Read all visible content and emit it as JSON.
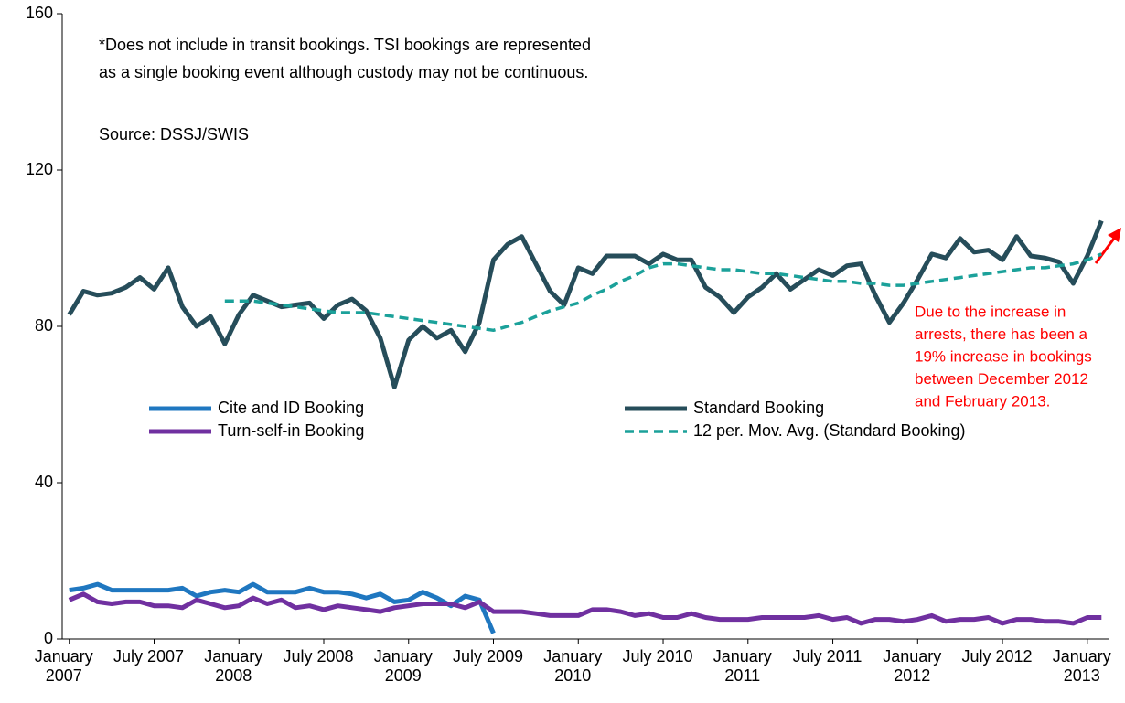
{
  "chart_data": {
    "type": "line",
    "notes": [
      "*Does not include in transit bookings. TSI bookings are represented",
      "as a single booking event although custody may not be continuous.",
      "Source: DSSJ/SWIS"
    ],
    "annotation": [
      "Due to the increase in",
      "arrests, there has been a",
      "19% increase in bookings",
      "between December 2012",
      "and February 2013."
    ],
    "annotation_color": "#FF0000",
    "categories": [
      "January 2007",
      null,
      null,
      null,
      null,
      null,
      "July 2007",
      null,
      null,
      null,
      null,
      null,
      "January 2008",
      null,
      null,
      null,
      null,
      null,
      "July 2008",
      null,
      null,
      null,
      null,
      null,
      "January 2009",
      null,
      null,
      null,
      null,
      null,
      "July 2009",
      null,
      null,
      null,
      null,
      null,
      "January 2010",
      null,
      null,
      null,
      null,
      null,
      "July 2010",
      null,
      null,
      null,
      null,
      null,
      "January 2011",
      null,
      null,
      null,
      null,
      null,
      "July 2011",
      null,
      null,
      null,
      null,
      null,
      "January 2012",
      null,
      null,
      null,
      null,
      null,
      "July 2012",
      null,
      null,
      null,
      null,
      null,
      "January 2013",
      null
    ],
    "series": [
      {
        "name": "Cite and ID Booking",
        "color": "#1F77C0",
        "dashed": false,
        "values": [
          12.5,
          13,
          14,
          12.5,
          12.5,
          12.5,
          12.5,
          12.5,
          13,
          11,
          12,
          12.5,
          12,
          14,
          12,
          12,
          12,
          13,
          12,
          12,
          11.5,
          10.5,
          11.5,
          9.5,
          10,
          12,
          10.5,
          8.5,
          11,
          10,
          1.5,
          null,
          null,
          null,
          null,
          null,
          null,
          null,
          null,
          null,
          null,
          null,
          null,
          null,
          null,
          null,
          null,
          null,
          null,
          null,
          null,
          null,
          null,
          null,
          null,
          null,
          null,
          null,
          null,
          null,
          null,
          null,
          null,
          null,
          null,
          null,
          null,
          null,
          null,
          null,
          null,
          null,
          null,
          null
        ]
      },
      {
        "name": "Standard Booking",
        "color": "#264D5A",
        "dashed": false,
        "values": [
          83,
          89,
          88,
          88.5,
          90,
          92.5,
          89.5,
          95,
          85,
          80,
          82.5,
          75.5,
          83,
          88,
          86.5,
          85,
          85.5,
          86,
          82,
          85.5,
          87,
          84,
          77,
          64.5,
          76.5,
          80,
          77,
          79,
          73.5,
          81,
          97,
          101,
          103,
          96,
          89,
          85.5,
          95,
          93.5,
          98,
          98,
          98,
          96,
          98.5,
          97,
          97,
          90,
          87.5,
          83.5,
          87.5,
          90,
          93.5,
          89.5,
          92,
          94.5,
          93,
          95.5,
          96,
          88,
          81,
          86,
          92,
          98.5,
          97.5,
          102.5,
          99,
          99.5,
          97,
          103,
          98,
          97.5,
          96.5,
          91,
          98,
          107
        ]
      },
      {
        "name": "Turn-self-in Booking",
        "color": "#7030A0",
        "dashed": false,
        "values": [
          10,
          11.5,
          9.5,
          9,
          9.5,
          9.5,
          8.5,
          8.5,
          8,
          10,
          9,
          8,
          8.5,
          10.5,
          9,
          10,
          8,
          8.5,
          7.5,
          8.5,
          8,
          7.5,
          7,
          8,
          8.5,
          9,
          9,
          9,
          8,
          9.5,
          7,
          7,
          7,
          6.5,
          6,
          6,
          6,
          7.5,
          7.5,
          7,
          6,
          6.5,
          5.5,
          5.5,
          6.5,
          5.5,
          5,
          5,
          5,
          5.5,
          5.5,
          5.5,
          5.5,
          6,
          5,
          5.5,
          4,
          5,
          5,
          4.5,
          5,
          6,
          4.5,
          5,
          5,
          5.5,
          4,
          5,
          5,
          4.5,
          4.5,
          4,
          5.5,
          5.5
        ]
      },
      {
        "name": "12 per. Mov. Avg. (Standard Booking)",
        "color": "#1BA19A",
        "dashed": true,
        "values": [
          null,
          null,
          null,
          null,
          null,
          null,
          null,
          null,
          null,
          null,
          null,
          86.5,
          86.5,
          86.5,
          86,
          85.5,
          85,
          84.5,
          84,
          83.5,
          83.5,
          83.5,
          83,
          82.5,
          82,
          81.5,
          81,
          80.5,
          80,
          79.5,
          79,
          80,
          81,
          82.5,
          84,
          85,
          86,
          88,
          89.5,
          91.5,
          93,
          95,
          96,
          96,
          95.5,
          95,
          94.5,
          94.5,
          94,
          93.5,
          93.5,
          93,
          92.5,
          92,
          91.5,
          91.5,
          91,
          91,
          90.5,
          90.5,
          91,
          91.5,
          92,
          92.5,
          93,
          93.5,
          94,
          94.5,
          95,
          95,
          95.5,
          96,
          97,
          98.5
        ]
      }
    ],
    "ylim": [
      0,
      160
    ],
    "yticks": [
      0,
      40,
      80,
      120,
      160
    ],
    "grid": false
  }
}
